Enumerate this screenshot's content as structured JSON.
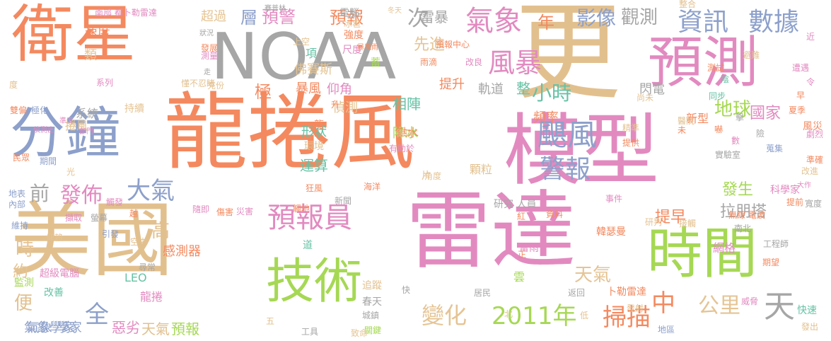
{
  "palette": {
    "salmon": "#F4895F",
    "tan": "#E2C08E",
    "gray": "#A6A6A6",
    "pink": "#E28AC0",
    "blue": "#8DA0CB",
    "green": "#A6D854",
    "teal": "#66C2A5",
    "yellow": "#E5C494",
    "orange": "#FC8D62",
    "lime": "#9ACD32"
  },
  "words": [
    {
      "text": "龍捲風"
    },
    {
      "text": "雷達"
    },
    {
      "text": "更"
    },
    {
      "text": "模型"
    },
    {
      "text": "美國"
    },
    {
      "text": "衛星"
    },
    {
      "text": "NOAA"
    },
    {
      "text": "分鐘"
    },
    {
      "text": "預測"
    },
    {
      "text": "時間"
    },
    {
      "text": "技術"
    },
    {
      "text": "預報員"
    },
    {
      "text": "颶風"
    },
    {
      "text": "風暴"
    },
    {
      "text": "氣象"
    },
    {
      "text": "資訊"
    },
    {
      "text": "數據"
    },
    {
      "text": "大氣"
    },
    {
      "text": "警報"
    },
    {
      "text": "小時"
    },
    {
      "text": "地球"
    },
    {
      "text": "發佈"
    },
    {
      "text": "前"
    },
    {
      "text": "2011年"
    },
    {
      "text": "公里"
    },
    {
      "text": "變化"
    },
    {
      "text": "天"
    },
    {
      "text": "中"
    },
    {
      "text": "全"
    },
    {
      "text": "影像"
    },
    {
      "text": "觀測"
    },
    {
      "text": "年"
    },
    {
      "text": "層"
    },
    {
      "text": "預警"
    },
    {
      "text": "預報"
    },
    {
      "text": "超過"
    },
    {
      "text": "次"
    },
    {
      "text": "雷暴"
    },
    {
      "text": "掃描"
    },
    {
      "text": "天氣"
    },
    {
      "text": "運算"
    },
    {
      "text": "形狀"
    },
    {
      "text": "降水"
    },
    {
      "text": "相陣"
    },
    {
      "text": "拉朋塔"
    },
    {
      "text": "發生"
    },
    {
      "text": "提早"
    },
    {
      "text": "國家"
    },
    {
      "text": "閃電"
    },
    {
      "text": "頻率"
    },
    {
      "text": "軌道"
    },
    {
      "text": "暴風"
    },
    {
      "text": "仰角"
    },
    {
      "text": "偵測"
    },
    {
      "text": "提升"
    },
    {
      "text": "先進"
    },
    {
      "text": "極"
    },
    {
      "text": "整"
    },
    {
      "text": "高"
    },
    {
      "text": "時"
    },
    {
      "text": "約"
    },
    {
      "text": "便"
    },
    {
      "text": "氣象學家"
    },
    {
      "text": "監測"
    },
    {
      "text": "改善"
    },
    {
      "text": "惡劣"
    },
    {
      "text": "天氣"
    },
    {
      "text": "預報"
    },
    {
      "text": "超級電腦"
    },
    {
      "text": "LEO"
    },
    {
      "text": "龍捲"
    },
    {
      "text": "氣象 學家"
    },
    {
      "text": "速度"
    },
    {
      "text": "類"
    },
    {
      "text": "佛賽斯"
    },
    {
      "text": "項"
    },
    {
      "text": "感測器"
    },
    {
      "text": "網格"
    },
    {
      "text": "韓瑟曼"
    },
    {
      "text": "卜勒雷達"
    },
    {
      "text": "新型"
    },
    {
      "text": "風災"
    },
    {
      "text": "科學家"
    },
    {
      "text": "無線 電波"
    },
    {
      "text": "追蹤"
    },
    {
      "text": "春天"
    },
    {
      "text": "雷雨"
    },
    {
      "text": "研究 人員"
    },
    {
      "text": "系統"
    },
    {
      "text": "捲風"
    },
    {
      "text": "持續"
    },
    {
      "text": "南部 都卜勒雷達"
    },
    {
      "text": "電腦"
    },
    {
      "text": "預報中心"
    },
    {
      "text": "洪水"
    },
    {
      "text": "環境"
    },
    {
      "text": "顆粒"
    },
    {
      "text": "海洋"
    },
    {
      "text": "狂風"
    },
    {
      "text": "雲"
    },
    {
      "text": "上空"
    },
    {
      "text": "強度"
    },
    {
      "text": "尺度"
    },
    {
      "text": "冰雹"
    },
    {
      "text": "狀況"
    },
    {
      "text": "發展"
    },
    {
      "text": "測量"
    },
    {
      "text": "雙偏"
    },
    {
      "text": "極化"
    },
    {
      "text": "準度"
    },
    {
      "text": "偵測出"
    },
    {
      "text": "部門"
    },
    {
      "text": "民眾"
    },
    {
      "text": "期間"
    },
    {
      "text": "地表"
    },
    {
      "text": "內部"
    },
    {
      "text": "光"
    },
    {
      "text": "災害"
    },
    {
      "text": "新聞"
    },
    {
      "text": "事件"
    },
    {
      "text": "大作"
    },
    {
      "text": "改進"
    },
    {
      "text": "準確"
    },
    {
      "text": "實驗室"
    },
    {
      "text": "資料"
    },
    {
      "text": "期望"
    },
    {
      "text": "工程師"
    },
    {
      "text": "居民"
    },
    {
      "text": "返回"
    },
    {
      "text": "發射"
    },
    {
      "text": "地區"
    },
    {
      "text": "關鍵"
    },
    {
      "text": "工具"
    },
    {
      "text": "發出"
    },
    {
      "text": "快速"
    },
    {
      "text": "醫院"
    },
    {
      "text": "同步"
    },
    {
      "text": "尚未"
    },
    {
      "text": "提供"
    },
    {
      "text": "精準"
    },
    {
      "text": "早"
    },
    {
      "text": "劇烈"
    },
    {
      "text": "雨滴"
    },
    {
      "text": "改良"
    },
    {
      "text": "得以"
    },
    {
      "text": "有助於"
    },
    {
      "text": "城鎮"
    },
    {
      "text": "南北"
    },
    {
      "text": "角度"
    },
    {
      "text": "提前"
    },
    {
      "text": "寬度"
    },
    {
      "text": "北"
    },
    {
      "text": "紅"
    },
    {
      "text": "正"
    },
    {
      "text": "低"
    },
    {
      "text": "快"
    },
    {
      "text": "道"
    },
    {
      "text": "五"
    },
    {
      "text": "空中"
    },
    {
      "text": "尋常"
    },
    {
      "text": "引發"
    },
    {
      "text": "隨即"
    },
    {
      "text": "觸地"
    },
    {
      "text": "傷害"
    },
    {
      "text": "仰賴"
    },
    {
      "text": "螢幕"
    },
    {
      "text": "擷取"
    },
    {
      "text": "維持"
    },
    {
      "text": "接觸"
    },
    {
      "text": "整合"
    },
    {
      "text": "近"
    },
    {
      "text": "避難"
    },
    {
      "text": "遭遇"
    },
    {
      "text": "夏季"
    },
    {
      "text": "研判"
    },
    {
      "text": "威脅"
    },
    {
      "text": "充份"
    },
    {
      "text": "令"
    },
    {
      "text": "懂不忍睹"
    },
    {
      "text": "走"
    },
    {
      "text": "度"
    },
    {
      "text": "系列"
    },
    {
      "text": "賽普林"
    },
    {
      "text": "冬天"
    },
    {
      "text": "暴風雨"
    },
    {
      "text": "龍"
    },
    {
      "text": "片"
    },
    {
      "text": "蓄"
    },
    {
      "text": "未"
    },
    {
      "text": "致命"
    },
    {
      "text": "升"
    },
    {
      "text": "蒐集"
    },
    {
      "text": "數"
    },
    {
      "text": "嚇"
    },
    {
      "text": "越"
    },
    {
      "text": "觸發"
    },
    {
      "text": "測試"
    },
    {
      "text": "擊"
    },
    {
      "text": "險"
    },
    {
      "text": "陰"
    }
  ]
}
